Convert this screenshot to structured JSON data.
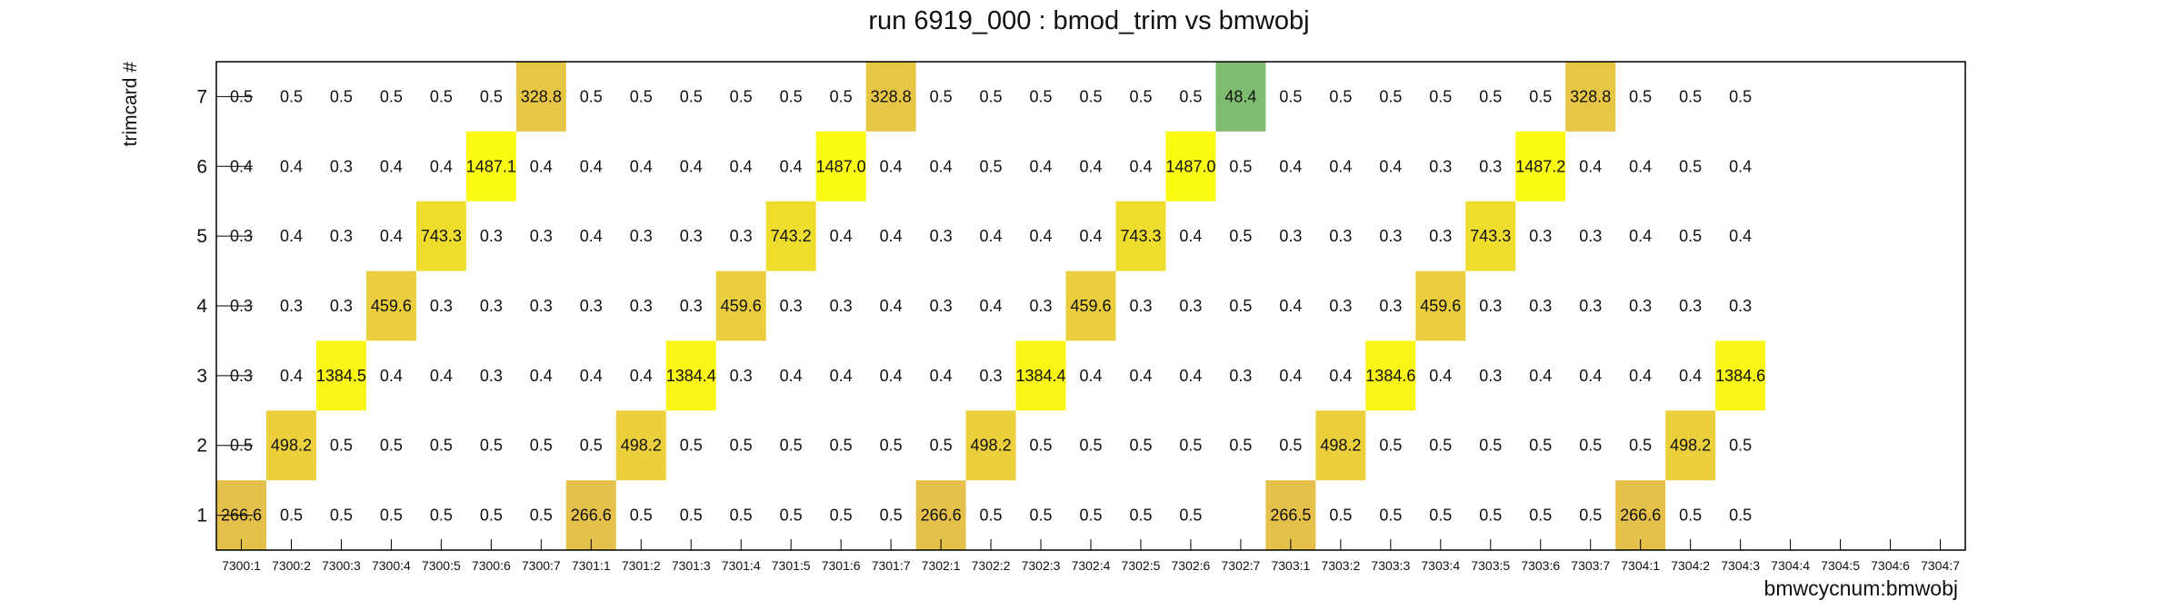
{
  "chart_data": {
    "type": "heatmap",
    "title": "run 6919_000 : bmod_trim vs bmwobj",
    "xlabel": "bmwcycnum:bmwobj",
    "ylabel": "trimcard #",
    "x_categories": [
      "7300:1",
      "7300:2",
      "7300:3",
      "7300:4",
      "7300:5",
      "7300:6",
      "7300:7",
      "7301:1",
      "7301:2",
      "7301:3",
      "7301:4",
      "7301:5",
      "7301:6",
      "7301:7",
      "7302:1",
      "7302:2",
      "7302:3",
      "7302:4",
      "7302:5",
      "7302:6",
      "7302:7",
      "7303:1",
      "7303:2",
      "7303:3",
      "7303:4",
      "7303:5",
      "7303:6",
      "7303:7",
      "7304:1",
      "7304:2",
      "7304:3",
      "7304:4",
      "7304:5",
      "7304:6",
      "7304:7"
    ],
    "y_categories": [
      "1",
      "2",
      "3",
      "4",
      "5",
      "6",
      "7"
    ],
    "values": [
      [
        "266.6",
        "0.5",
        "0.5",
        "0.5",
        "0.5",
        "0.5",
        "0.5",
        "266.6",
        "0.5",
        "0.5",
        "0.5",
        "0.5",
        "0.5",
        "0.5",
        "266.6",
        "0.5",
        "0.5",
        "0.5",
        "0.5",
        "0.5",
        "",
        "266.5",
        "0.5",
        "0.5",
        "0.5",
        "0.5",
        "0.5",
        "0.5",
        "266.6",
        "0.5",
        "0.5",
        "",
        "",
        "",
        ""
      ],
      [
        "0.5",
        "498.2",
        "0.5",
        "0.5",
        "0.5",
        "0.5",
        "0.5",
        "0.5",
        "498.2",
        "0.5",
        "0.5",
        "0.5",
        "0.5",
        "0.5",
        "0.5",
        "498.2",
        "0.5",
        "0.5",
        "0.5",
        "0.5",
        "0.5",
        "0.5",
        "498.2",
        "0.5",
        "0.5",
        "0.5",
        "0.5",
        "0.5",
        "0.5",
        "498.2",
        "0.5",
        "",
        "",
        "",
        ""
      ],
      [
        "0.3",
        "0.4",
        "1384.5",
        "0.4",
        "0.4",
        "0.3",
        "0.4",
        "0.4",
        "0.4",
        "1384.4",
        "0.3",
        "0.4",
        "0.4",
        "0.4",
        "0.4",
        "0.3",
        "1384.4",
        "0.4",
        "0.4",
        "0.4",
        "0.3",
        "0.4",
        "0.4",
        "1384.6",
        "0.4",
        "0.3",
        "0.4",
        "0.4",
        "0.4",
        "0.4",
        "1384.6",
        "",
        "",
        "",
        ""
      ],
      [
        "0.3",
        "0.3",
        "0.3",
        "459.6",
        "0.3",
        "0.3",
        "0.3",
        "0.3",
        "0.3",
        "0.3",
        "459.6",
        "0.3",
        "0.3",
        "0.4",
        "0.3",
        "0.4",
        "0.3",
        "459.6",
        "0.3",
        "0.3",
        "0.5",
        "0.4",
        "0.3",
        "0.3",
        "459.6",
        "0.3",
        "0.3",
        "0.3",
        "0.3",
        "0.3",
        "0.3",
        "",
        "",
        "",
        ""
      ],
      [
        "0.3",
        "0.4",
        "0.3",
        "0.4",
        "743.3",
        "0.3",
        "0.3",
        "0.4",
        "0.3",
        "0.3",
        "0.3",
        "743.2",
        "0.4",
        "0.4",
        "0.3",
        "0.4",
        "0.4",
        "0.4",
        "743.3",
        "0.4",
        "0.5",
        "0.3",
        "0.3",
        "0.3",
        "0.3",
        "743.3",
        "0.3",
        "0.3",
        "0.4",
        "0.5",
        "0.4",
        "",
        "",
        "",
        ""
      ],
      [
        "0.4",
        "0.4",
        "0.3",
        "0.4",
        "0.4",
        "1487.1",
        "0.4",
        "0.4",
        "0.4",
        "0.4",
        "0.4",
        "0.4",
        "1487.0",
        "0.4",
        "0.4",
        "0.5",
        "0.4",
        "0.4",
        "0.4",
        "1487.0",
        "0.5",
        "0.4",
        "0.4",
        "0.4",
        "0.3",
        "0.3",
        "1487.2",
        "0.4",
        "0.4",
        "0.5",
        "0.4",
        "",
        "",
        "",
        ""
      ],
      [
        "0.5",
        "0.5",
        "0.5",
        "0.5",
        "0.5",
        "0.5",
        "328.8",
        "0.5",
        "0.5",
        "0.5",
        "0.5",
        "0.5",
        "0.5",
        "328.8",
        "0.5",
        "0.5",
        "0.5",
        "0.5",
        "0.5",
        "0.5",
        "48.4",
        "0.5",
        "0.5",
        "0.5",
        "0.5",
        "0.5",
        "0.5",
        "328.8",
        "0.5",
        "0.5",
        "0.5",
        "",
        "",
        "",
        ""
      ]
    ],
    "colorscale": "kBird",
    "grid": false,
    "legend": "none"
  }
}
